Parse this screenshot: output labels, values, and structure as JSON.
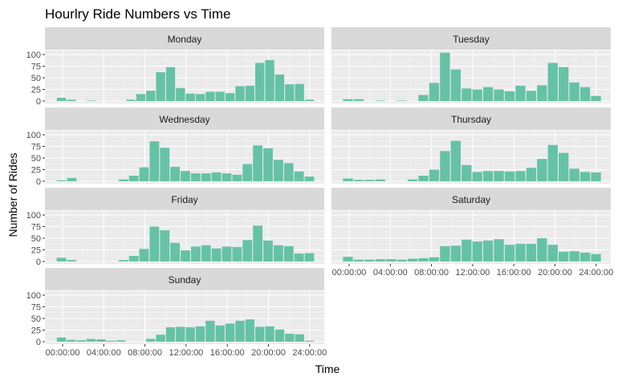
{
  "chart_data": {
    "type": "bar",
    "title": "Hourlry Ride Numbers vs Time",
    "xlabel": "Time",
    "ylabel": "Number of Rides",
    "ylim": [
      0,
      100
    ],
    "y_ticks": [
      "0",
      "25",
      "50",
      "75",
      "100"
    ],
    "x_tick_labels": [
      "00:00:00",
      "04:00:00",
      "08:00:00",
      "12:00:00",
      "16:00:00",
      "20:00:00",
      "24:00:00"
    ],
    "x_tick_hours": [
      0,
      4,
      8,
      12,
      16,
      20,
      24
    ],
    "bar_color": "#66c2a5",
    "panel_background": "#ebebeb",
    "strip_background": "#d9d9d9",
    "grid": true,
    "panels": [
      {
        "name": "Monday",
        "values": [
          7,
          3,
          0,
          1,
          0,
          0,
          0,
          3,
          15,
          22,
          62,
          73,
          28,
          16,
          15,
          20,
          20,
          17,
          32,
          33,
          82,
          88,
          57,
          36,
          37,
          3
        ]
      },
      {
        "name": "Tuesday",
        "values": [
          4,
          4,
          0,
          1,
          0,
          1,
          0,
          13,
          39,
          104,
          68,
          27,
          25,
          30,
          25,
          21,
          33,
          22,
          34,
          82,
          73,
          40,
          30,
          11
        ]
      },
      {
        "name": "Wednesday",
        "values": [
          2,
          7,
          0,
          0,
          0,
          0,
          4,
          12,
          30,
          86,
          72,
          31,
          22,
          17,
          17,
          19,
          17,
          14,
          37,
          77,
          71,
          46,
          39,
          21,
          10
        ]
      },
      {
        "name": "Thursday",
        "values": [
          6,
          3,
          3,
          4,
          0,
          0,
          4,
          12,
          25,
          65,
          87,
          35,
          20,
          22,
          22,
          21,
          22,
          29,
          48,
          78,
          61,
          27,
          20,
          19
        ]
      },
      {
        "name": "Friday",
        "values": [
          8,
          3,
          0,
          0,
          0,
          0,
          3,
          12,
          27,
          75,
          67,
          40,
          24,
          32,
          35,
          28,
          32,
          31,
          46,
          77,
          45,
          35,
          33,
          17,
          18
        ]
      },
      {
        "name": "Saturday",
        "values": [
          10,
          4,
          4,
          5,
          5,
          4,
          6,
          7,
          9,
          33,
          34,
          47,
          43,
          45,
          48,
          36,
          38,
          38,
          50,
          36,
          21,
          22,
          19,
          16
        ]
      },
      {
        "name": "Sunday",
        "values": [
          9,
          4,
          3,
          6,
          5,
          2,
          3,
          0,
          0,
          6,
          15,
          31,
          32,
          31,
          33,
          45,
          35,
          39,
          45,
          48,
          32,
          33,
          26,
          17,
          16,
          2
        ]
      }
    ]
  }
}
